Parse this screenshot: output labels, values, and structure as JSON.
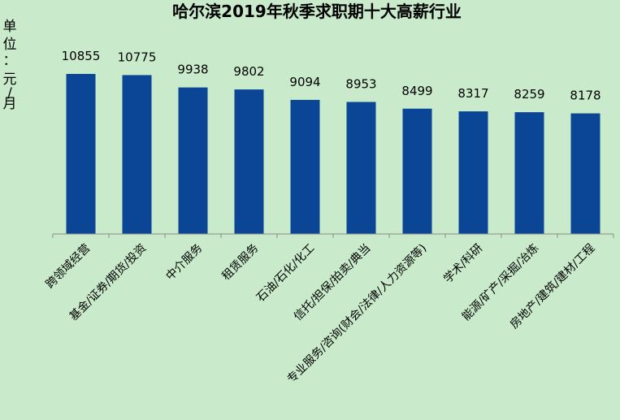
{
  "chart_data": {
    "type": "bar",
    "title": "哈尔滨2019年秋季求职期十大高薪行业",
    "ylabel": "单位：元/月",
    "ylabel_chars": [
      "单",
      "位",
      "：",
      "元",
      "/",
      "月"
    ],
    "categories": [
      "跨领域经营",
      "基金/证券/期货/投资",
      "中介服务",
      "租赁服务",
      "石油/石化/化工",
      "信托/担保/拍卖/典当",
      "专业服务/咨询(财会/法律/人力资源等)",
      "学术/科研",
      "能源/矿产/采掘/冶炼",
      "房地产/建筑/建材/工程"
    ],
    "values": [
      10855,
      10775,
      9938,
      9802,
      9094,
      8953,
      8499,
      8317,
      8259,
      8178
    ],
    "data_labels": [
      "10855",
      "10775",
      "9938",
      "9802",
      "9094",
      "8953",
      "8499",
      "8317",
      "8259",
      "8178"
    ],
    "ylim": [
      0,
      12000
    ],
    "grid": false,
    "legend": "none",
    "colors": {
      "bar": "#0b4595",
      "background": "#c9ebcb",
      "axis": "#8a8a8a"
    }
  }
}
